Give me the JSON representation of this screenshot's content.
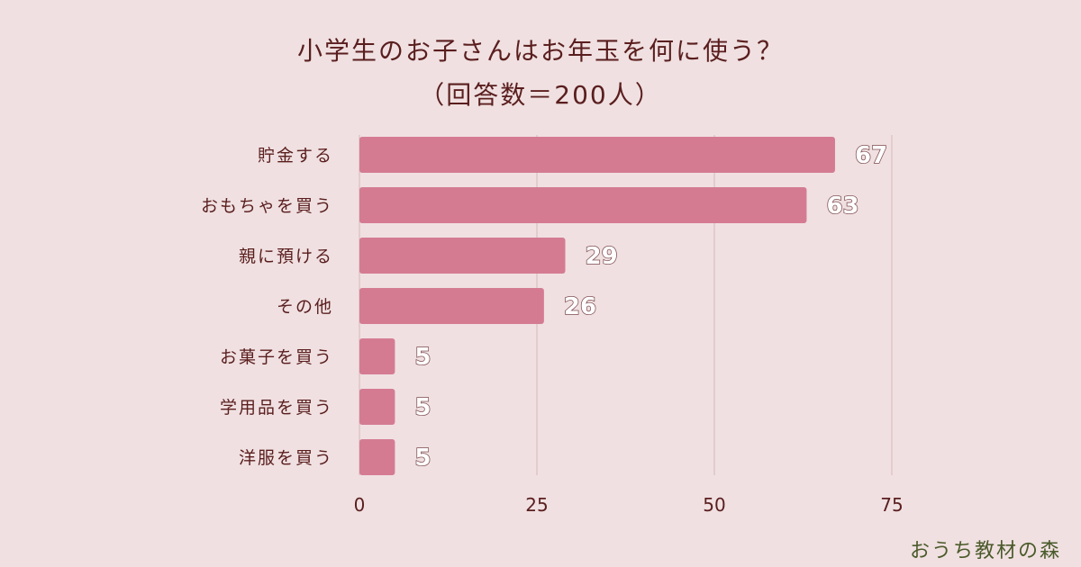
{
  "chart_data": {
    "type": "bar",
    "orientation": "horizontal",
    "title_line1": "小学生のお子さんはお年玉を何に使う？",
    "title_line2": "（回答数＝200人）",
    "categories": [
      "貯金する",
      "おもちゃを買う",
      "親に預ける",
      "その他",
      "お菓子を買う",
      "学用品を買う",
      "洋服を買う"
    ],
    "values": [
      67,
      63,
      29,
      26,
      5,
      5,
      5
    ],
    "value_labels": [
      "67",
      "63",
      "29",
      "26",
      "5",
      "5",
      "5"
    ],
    "xticks": [
      0,
      25,
      50,
      75
    ],
    "xtick_labels": [
      "0",
      "25",
      "50",
      "75"
    ],
    "xlim": [
      0,
      75
    ],
    "grid": true,
    "bar_color": "#d47b92"
  },
  "brand": {
    "text": "おうち教材の森"
  }
}
